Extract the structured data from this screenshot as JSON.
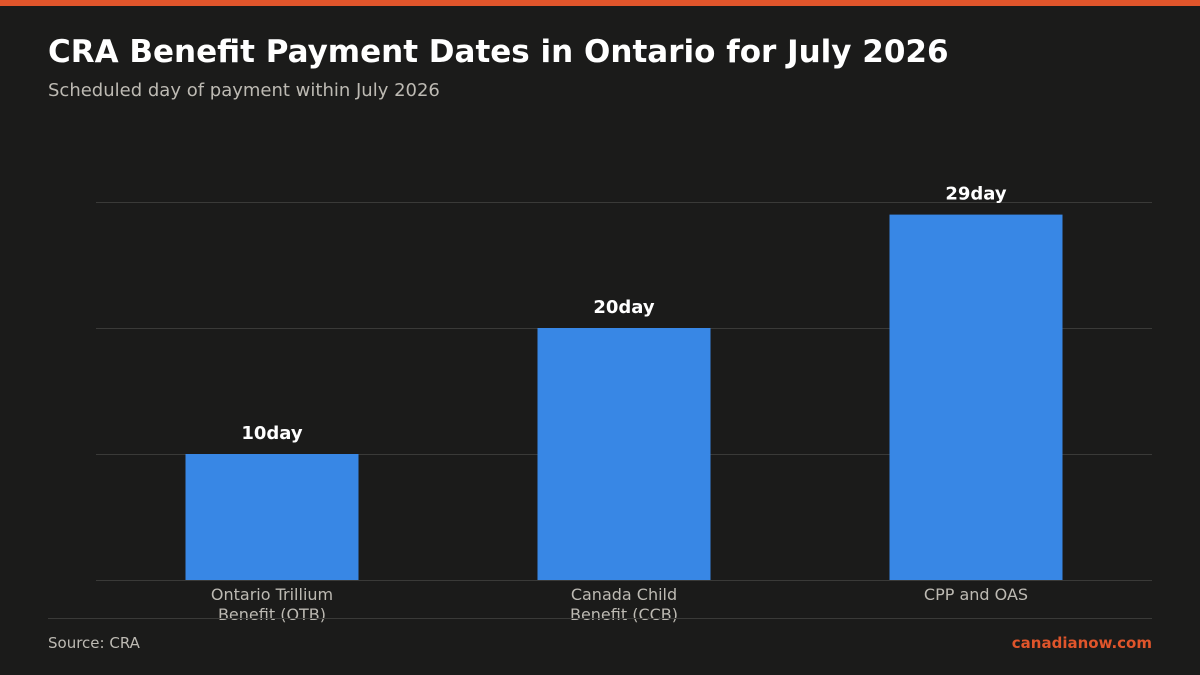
{
  "title": "CRA Benefit Payment Dates in Ontario for July 2026",
  "subtitle": "Scheduled day of payment within July 2026",
  "source": "Source: CRA",
  "brand": "canadianow.com",
  "colors": {
    "accent": "#e0552b",
    "bar": "#3887e5",
    "background": "#1b1b1a"
  },
  "chart_data": {
    "type": "bar",
    "categories": [
      [
        "Ontario Trillium",
        "Benefit (OTB)"
      ],
      [
        "Canada Child",
        "Benefit (CCB)"
      ],
      [
        "CPP and OAS"
      ]
    ],
    "values": [
      10,
      20,
      29
    ],
    "value_suffix": "day",
    "ylim": [
      0,
      30
    ],
    "grid": true,
    "legend": "none"
  }
}
